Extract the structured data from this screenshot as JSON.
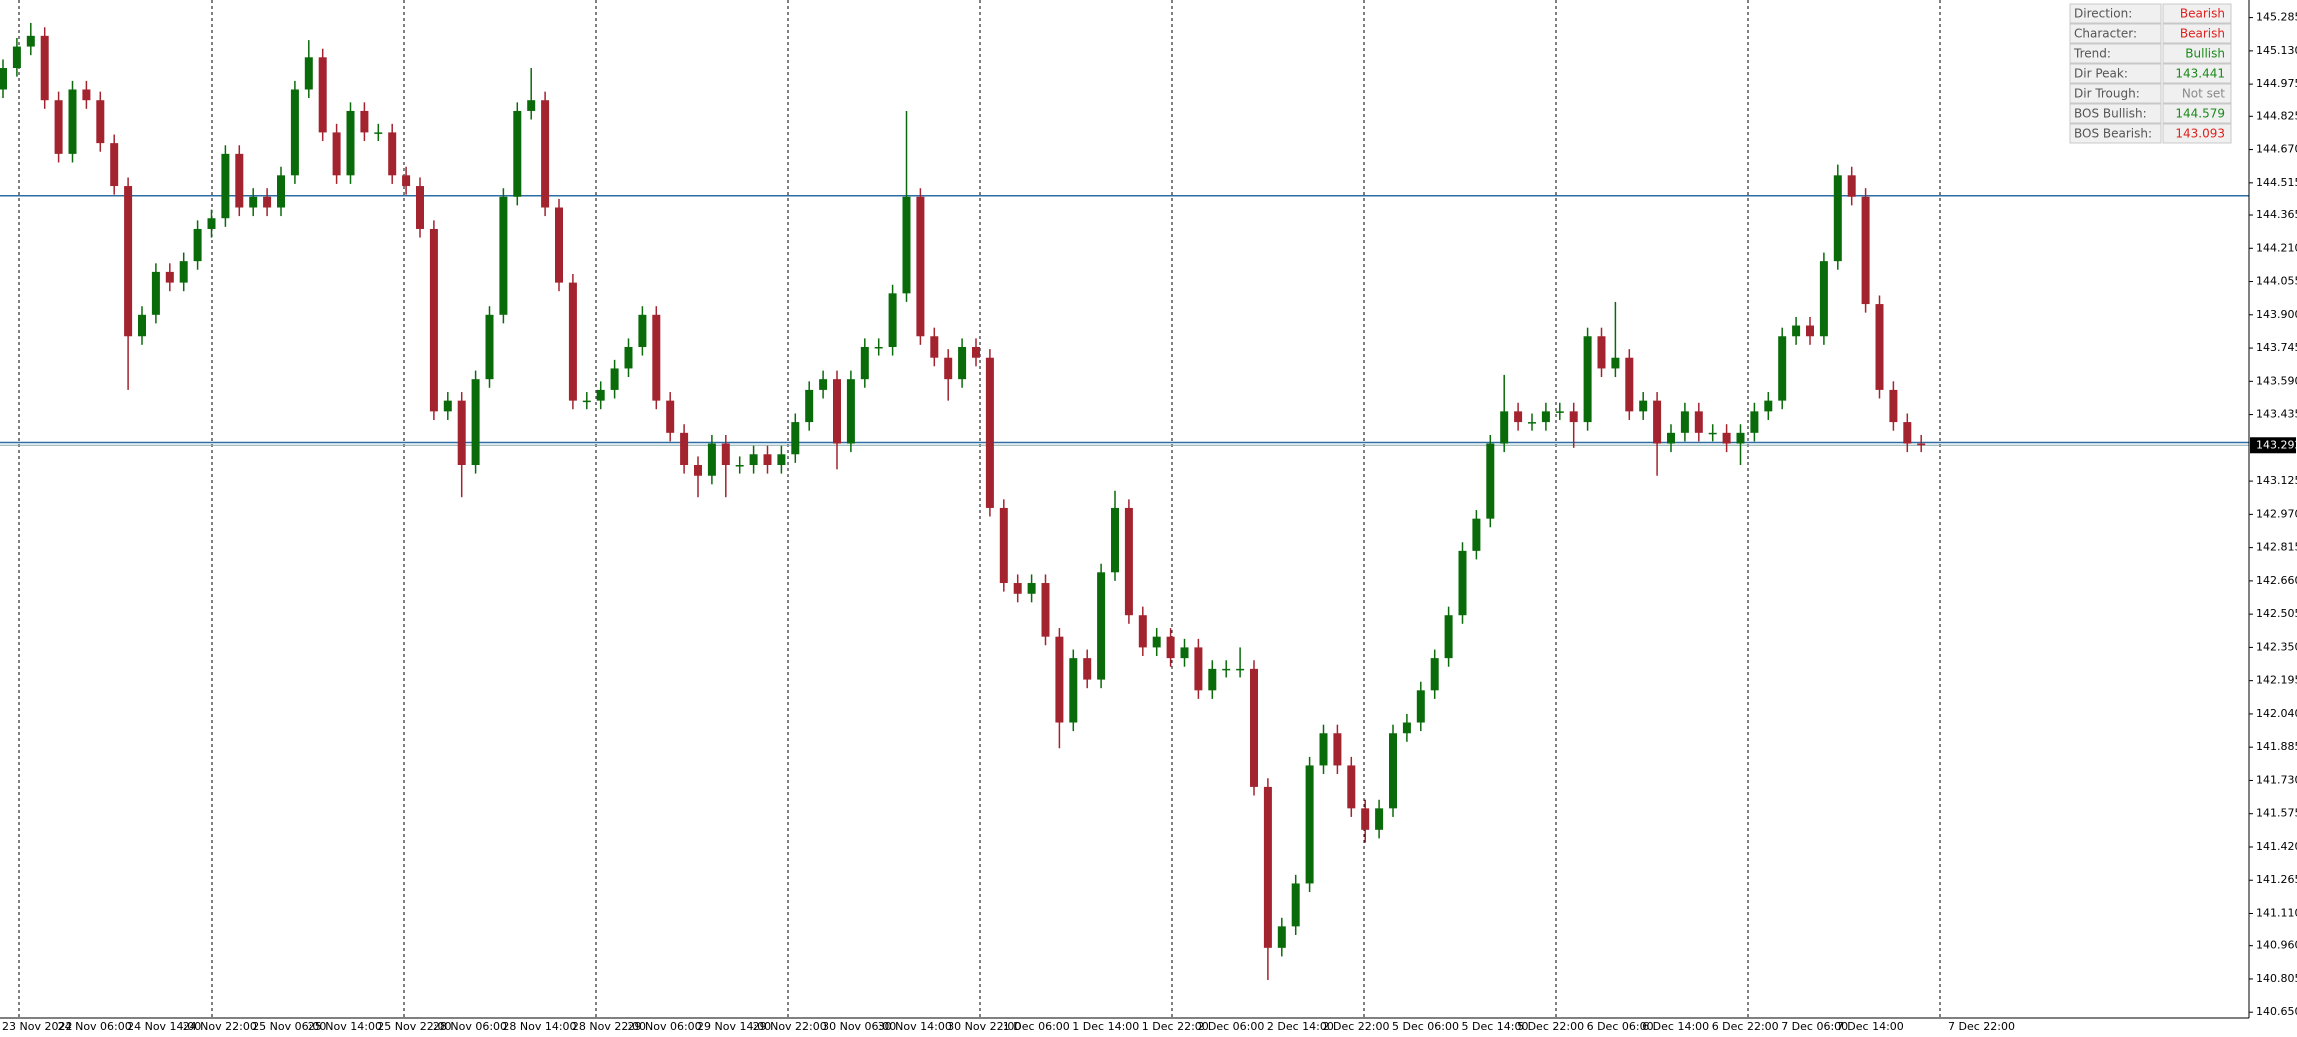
{
  "chart_data": {
    "type": "candlestick",
    "categories": [
      "23 Nov 2022",
      null,
      null,
      null,
      "24 Nov 06:00",
      null,
      null,
      null,
      null,
      "24 Nov 14:00",
      null,
      null,
      null,
      "24 Nov 22:00",
      null,
      null,
      null,
      null,
      "25 Nov 06:00",
      null,
      null,
      null,
      "25 Nov 14:00",
      null,
      null,
      null,
      null,
      "25 Nov 22:00",
      null,
      null,
      null,
      "28 Nov 06:00",
      null,
      null,
      null,
      null,
      "28 Nov 14:00",
      null,
      null,
      null,
      null,
      "28 Nov 22:00",
      null,
      null,
      null,
      "29 Nov 06:00",
      null,
      null,
      null,
      null,
      "29 Nov 14:00",
      null,
      null,
      null,
      "29 Nov 22:00",
      null,
      null,
      null,
      null,
      "30 Nov 06:00",
      null,
      null,
      null,
      "30 Nov 14:00",
      null,
      null,
      null,
      null,
      "30 Nov 22:00",
      null,
      null,
      null,
      "1 Dec 06:00",
      null,
      null,
      null,
      null,
      "1 Dec 14:00",
      null,
      null,
      null,
      null,
      "1 Dec 22:00",
      null,
      null,
      null,
      "2 Dec 06:00",
      null,
      null,
      null,
      null,
      "2 Dec 14:00",
      null,
      null,
      null,
      "2 Dec 22:00",
      null,
      null,
      null,
      null,
      "5 Dec 06:00",
      null,
      null,
      null,
      null,
      "5 Dec 14:00",
      null,
      null,
      null,
      "5 Dec 22:00",
      null,
      null,
      null,
      null,
      "6 Dec 06:00",
      null,
      null,
      null,
      "6 Dec 14:00",
      null,
      null,
      null,
      null,
      "6 Dec 22:00",
      null,
      null,
      null,
      null,
      "7 Dec 06:00",
      null,
      null,
      null,
      "7 Dec 14:00",
      null,
      null,
      null,
      null,
      null,
      null,
      null,
      "7 Dec 22:00"
    ],
    "open": [
      144.95,
      145.05,
      145.15,
      145.2,
      144.9,
      144.65,
      144.95,
      144.9,
      144.7,
      144.5,
      143.8,
      143.9,
      144.1,
      144.05,
      144.15,
      144.3,
      144.35,
      144.65,
      144.4,
      144.45,
      144.4,
      144.55,
      144.95,
      145.1,
      144.75,
      144.55,
      144.85,
      144.75,
      144.75,
      144.55,
      144.5,
      144.3,
      143.45,
      143.5,
      143.2,
      143.6,
      143.9,
      144.45,
      144.85,
      144.9,
      144.4,
      144.05,
      143.5,
      143.5,
      143.55,
      143.65,
      143.75,
      143.9,
      143.5,
      143.35,
      143.2,
      143.15,
      143.3,
      143.2,
      143.2,
      143.25,
      143.2,
      143.25,
      143.4,
      143.55,
      143.6,
      143.3,
      143.6,
      143.75,
      143.75,
      144.0,
      144.45,
      143.8,
      143.7,
      143.6,
      143.75,
      143.7,
      143.0,
      142.65,
      142.6,
      142.65,
      142.4,
      142.0,
      142.3,
      142.2,
      142.7,
      143.0,
      142.5,
      142.35,
      142.4,
      142.3,
      142.35,
      142.15,
      142.25,
      142.25,
      142.25,
      141.7,
      140.95,
      141.05,
      141.25,
      141.8,
      141.95,
      141.8,
      141.6,
      141.5,
      141.6,
      141.95,
      142.0,
      142.15,
      142.3,
      142.5,
      142.8,
      142.95,
      143.3,
      143.45,
      143.4,
      143.4,
      143.45,
      143.45,
      143.4,
      143.8,
      143.65,
      143.7,
      143.45,
      143.5,
      143.3,
      143.35,
      143.45,
      143.35,
      143.35,
      143.3,
      143.35,
      143.45,
      143.5,
      143.8,
      143.85,
      143.8,
      144.15,
      144.55,
      144.45,
      143.95,
      143.55,
      143.4,
      143.3,
      null,
      null
    ],
    "high": [
      145.09,
      145.19,
      145.26,
      145.24,
      144.94,
      144.99,
      144.99,
      144.94,
      144.74,
      144.54,
      143.94,
      144.14,
      144.14,
      144.19,
      144.34,
      144.39,
      144.69,
      144.69,
      144.49,
      144.49,
      144.59,
      144.99,
      145.18,
      145.14,
      144.79,
      144.89,
      144.89,
      144.79,
      144.79,
      144.59,
      144.54,
      144.34,
      143.54,
      143.54,
      143.64,
      143.94,
      144.49,
      144.89,
      145.05,
      144.94,
      144.44,
      144.09,
      143.54,
      143.59,
      143.69,
      143.79,
      143.94,
      143.94,
      143.54,
      143.39,
      143.24,
      143.34,
      143.34,
      143.24,
      143.29,
      143.29,
      143.29,
      143.44,
      143.59,
      143.64,
      143.64,
      143.64,
      143.79,
      143.79,
      144.04,
      144.85,
      144.49,
      143.84,
      143.74,
      143.79,
      143.79,
      143.74,
      143.04,
      142.69,
      142.69,
      142.69,
      142.44,
      142.34,
      142.34,
      142.74,
      143.08,
      143.04,
      142.54,
      142.44,
      142.44,
      142.39,
      142.39,
      142.29,
      142.29,
      142.35,
      142.29,
      141.74,
      141.09,
      141.29,
      141.84,
      141.99,
      141.99,
      141.84,
      141.64,
      141.64,
      141.99,
      142.04,
      142.19,
      142.34,
      142.54,
      142.84,
      142.99,
      143.34,
      143.62,
      143.49,
      143.44,
      143.49,
      143.49,
      143.49,
      143.84,
      143.84,
      143.96,
      143.74,
      143.54,
      143.54,
      143.39,
      143.49,
      143.49,
      143.39,
      143.39,
      143.39,
      143.49,
      143.54,
      143.84,
      143.89,
      143.89,
      144.19,
      144.6,
      144.59,
      144.49,
      143.99,
      143.59,
      143.44,
      143.34,
      null,
      null
    ],
    "low": [
      144.91,
      145.01,
      145.11,
      144.86,
      144.61,
      144.61,
      144.86,
      144.66,
      144.46,
      143.55,
      143.76,
      143.86,
      144.01,
      144.01,
      144.11,
      144.26,
      144.31,
      144.36,
      144.36,
      144.36,
      144.36,
      144.51,
      144.91,
      144.71,
      144.51,
      144.51,
      144.71,
      144.71,
      144.51,
      144.46,
      144.26,
      143.41,
      143.41,
      143.05,
      143.16,
      143.56,
      143.86,
      144.41,
      144.81,
      144.36,
      144.01,
      143.46,
      143.46,
      143.46,
      143.51,
      143.61,
      143.71,
      143.46,
      143.31,
      143.16,
      143.05,
      143.11,
      143.05,
      143.16,
      143.16,
      143.16,
      143.16,
      143.21,
      143.36,
      143.51,
      143.18,
      143.26,
      143.56,
      143.71,
      143.71,
      143.96,
      143.76,
      143.66,
      143.5,
      143.56,
      143.66,
      142.96,
      142.61,
      142.56,
      142.56,
      142.36,
      141.88,
      141.96,
      142.16,
      142.16,
      142.66,
      142.46,
      142.31,
      142.31,
      142.26,
      142.26,
      142.11,
      142.11,
      142.21,
      142.21,
      141.66,
      140.8,
      140.91,
      141.01,
      141.21,
      141.76,
      141.76,
      141.56,
      141.44,
      141.46,
      141.56,
      141.91,
      141.96,
      142.11,
      142.26,
      142.46,
      142.76,
      142.91,
      143.26,
      143.36,
      143.36,
      143.36,
      143.41,
      143.28,
      143.36,
      143.61,
      143.61,
      143.41,
      143.41,
      143.15,
      143.26,
      143.31,
      143.31,
      143.31,
      143.26,
      143.2,
      143.31,
      143.41,
      143.46,
      143.76,
      143.76,
      143.76,
      144.11,
      144.41,
      143.91,
      143.51,
      143.36,
      143.26,
      143.26,
      null,
      null
    ],
    "close": [
      145.05,
      145.15,
      145.2,
      144.9,
      144.65,
      144.95,
      144.9,
      144.7,
      144.5,
      143.8,
      143.9,
      144.1,
      144.05,
      144.15,
      144.3,
      144.35,
      144.65,
      144.4,
      144.45,
      144.4,
      144.55,
      144.95,
      145.1,
      144.75,
      144.55,
      144.85,
      144.75,
      144.75,
      144.55,
      144.5,
      144.3,
      143.45,
      143.5,
      143.2,
      143.6,
      143.9,
      144.45,
      144.85,
      144.9,
      144.4,
      144.05,
      143.5,
      143.5,
      143.55,
      143.65,
      143.75,
      143.9,
      143.5,
      143.35,
      143.2,
      143.15,
      143.3,
      143.2,
      143.2,
      143.25,
      143.2,
      143.25,
      143.4,
      143.55,
      143.6,
      143.3,
      143.6,
      143.75,
      143.75,
      144.0,
      144.45,
      143.8,
      143.7,
      143.6,
      143.75,
      143.7,
      143.0,
      142.65,
      142.6,
      142.65,
      142.4,
      142.0,
      142.3,
      142.2,
      142.7,
      143.0,
      142.5,
      142.35,
      142.4,
      142.3,
      142.35,
      142.15,
      142.25,
      142.25,
      142.25,
      141.7,
      140.95,
      141.05,
      141.25,
      141.8,
      141.95,
      141.8,
      141.6,
      141.5,
      141.6,
      141.95,
      142.0,
      142.15,
      142.3,
      142.5,
      142.8,
      142.95,
      143.3,
      143.45,
      143.4,
      143.4,
      143.45,
      143.45,
      143.4,
      143.8,
      143.65,
      143.7,
      143.45,
      143.5,
      143.3,
      143.35,
      143.45,
      143.35,
      143.35,
      143.3,
      143.35,
      143.45,
      143.5,
      143.8,
      143.85,
      143.8,
      144.15,
      144.55,
      144.45,
      143.95,
      143.55,
      143.4,
      143.3,
      143.292,
      null,
      null
    ],
    "up_color": "#0a6b0a",
    "down_color": "#a3232f",
    "ylim": [
      140.623,
      145.367
    ],
    "yticks": [
      145.285,
      {
        "value": 145.13,
        "label": "145.130"
      },
      144.975,
      144.825,
      {
        "value": 144.67,
        "label": "144.670"
      },
      144.515,
      144.365,
      {
        "value": 144.21,
        "label": "144.210"
      },
      144.055,
      {
        "value": 143.9,
        "label": "143.900"
      },
      143.745,
      {
        "value": 143.59,
        "label": "143.590"
      },
      143.435,
      143.125,
      {
        "value": 142.97,
        "label": "142.970"
      },
      142.815,
      {
        "value": 142.66,
        "label": "142.660"
      },
      142.505,
      {
        "value": 142.35,
        "label": "142.350"
      },
      142.195,
      {
        "value": 142.04,
        "label": "142.040"
      },
      141.885,
      {
        "value": 141.73,
        "label": "141.730"
      },
      141.575,
      {
        "value": 141.42,
        "label": "141.420"
      },
      141.265,
      {
        "value": 141.11,
        "label": "141.110"
      },
      {
        "value": 140.96,
        "label": "140.960"
      },
      140.805,
      {
        "value": 140.65,
        "label": "140.650"
      }
    ],
    "grid": false,
    "levels": [
      144.455,
      143.305
    ],
    "level_color": "#2e6da4",
    "current_price": 143.292
  },
  "panel": {
    "rows": [
      {
        "label": "Direction:",
        "value": "Bearish",
        "color": "#e0201c"
      },
      {
        "label": "Character:",
        "value": "Bearish",
        "color": "#e0201c"
      },
      {
        "label": "Trend:",
        "value": "Bullish",
        "color": "#1a8a1a"
      },
      {
        "label": "Dir Peak:",
        "value": "143.441",
        "color": "#1a8a1a"
      },
      {
        "label": "Dir Trough:",
        "value": "Not set",
        "color": "#8a8a8a"
      },
      {
        "label": "BOS Bullish:",
        "value": "144.579",
        "color": "#1a8a1a"
      },
      {
        "label": "BOS Bearish:",
        "value": "143.093",
        "color": "#e0201c"
      }
    ]
  }
}
